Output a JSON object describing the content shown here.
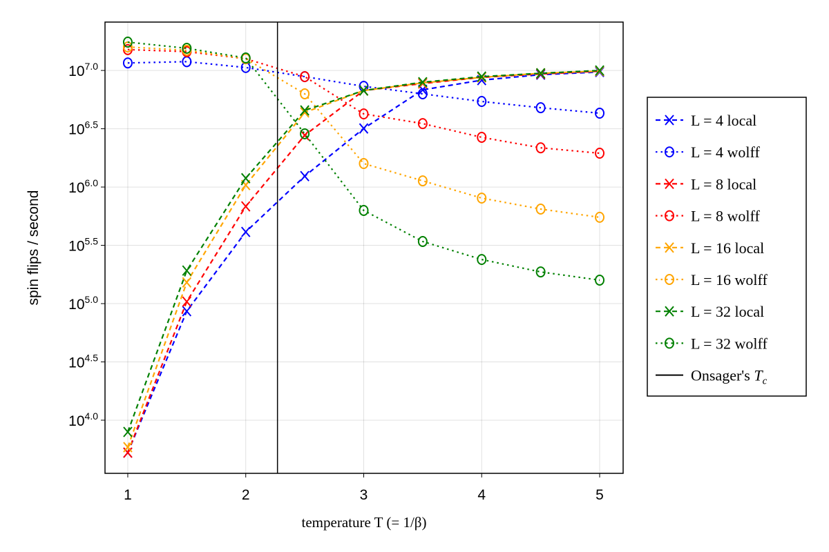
{
  "chart_data": {
    "type": "line",
    "xlabel": "temperature T (= 1/β)",
    "ylabel": "spin flips / second",
    "xlim": [
      0.807,
      5.199
    ],
    "ylim": [
      3500,
      26000000
    ],
    "yscale": "log",
    "grid": true,
    "legend_placement": "right-outside",
    "xticks": [
      1,
      2,
      3,
      4,
      5
    ],
    "xticklabels": [
      "1",
      "2",
      "3",
      "4",
      "5"
    ],
    "yticks": [
      10000,
      31623,
      100000,
      316228,
      1000000,
      3162278,
      10000000
    ],
    "yticklabels": [
      {
        "base": "10",
        "exp": "4.0"
      },
      {
        "base": "10",
        "exp": "4.5"
      },
      {
        "base": "10",
        "exp": "5.0"
      },
      {
        "base": "10",
        "exp": "5.5"
      },
      {
        "base": "10",
        "exp": "6.0"
      },
      {
        "base": "10",
        "exp": "6.5"
      },
      {
        "base": "10",
        "exp": "7.0"
      }
    ],
    "x": [
      1,
      1.5,
      2,
      2.5,
      3,
      3.5,
      4,
      4.5,
      5
    ],
    "series": [
      {
        "name": "L = 4 local",
        "color": "#0000ff",
        "style": "dashed",
        "marker": "x",
        "values": [
          5270,
          86100,
          412000,
          1240000,
          3180000,
          6820000,
          8260000,
          9200000,
          9700000
        ]
      },
      {
        "name": "L = 4 wolff",
        "color": "#0000ff",
        "style": "dotted",
        "marker": "circle",
        "values": [
          11600000,
          11900000,
          10600000,
          8850000,
          7310000,
          6300000,
          5420000,
          4790000,
          4300000
        ]
      },
      {
        "name": "L = 8 local",
        "color": "#ff0000",
        "style": "dashed",
        "marker": "x",
        "values": [
          5270,
          104000,
          682000,
          2780000,
          6730000,
          7730000,
          8730000,
          9330000,
          9860000
        ]
      },
      {
        "name": "L = 8 wolff",
        "color": "#ff0000",
        "style": "dotted",
        "marker": "circle",
        "values": [
          15100000,
          14500000,
          12600000,
          8850000,
          4240000,
          3500000,
          2670000,
          2170000,
          1950000
        ]
      },
      {
        "name": "L = 16 local",
        "color": "#ffa500",
        "style": "dashed",
        "marker": "x",
        "values": [
          5870,
          152000,
          1040000,
          4360000,
          6730000,
          7820000,
          8730000,
          9460000,
          9860000
        ]
      },
      {
        "name": "L = 16 wolff",
        "color": "#ffa500",
        "style": "dotted",
        "marker": "circle",
        "values": [
          15900000,
          14900000,
          12600000,
          6300000,
          1590000,
          1130000,
          804000,
          647000,
          550000
        ]
      },
      {
        "name": "L = 32 local",
        "color": "#008000",
        "style": "dashed",
        "marker": "x",
        "values": [
          7930,
          192000,
          1190000,
          4540000,
          6730000,
          7930000,
          8850000,
          9460000,
          10000000
        ]
      },
      {
        "name": "L = 32 wolff",
        "color": "#008000",
        "style": "dotted",
        "marker": "circle",
        "values": [
          17500000,
          15500000,
          12800000,
          2860000,
          630000,
          341000,
          239000,
          187000,
          159000
        ]
      }
    ],
    "vline": {
      "x": 2.269,
      "color": "#000000",
      "label": "Onsager's ",
      "label_symbol": "T",
      "label_sub": "c"
    }
  }
}
